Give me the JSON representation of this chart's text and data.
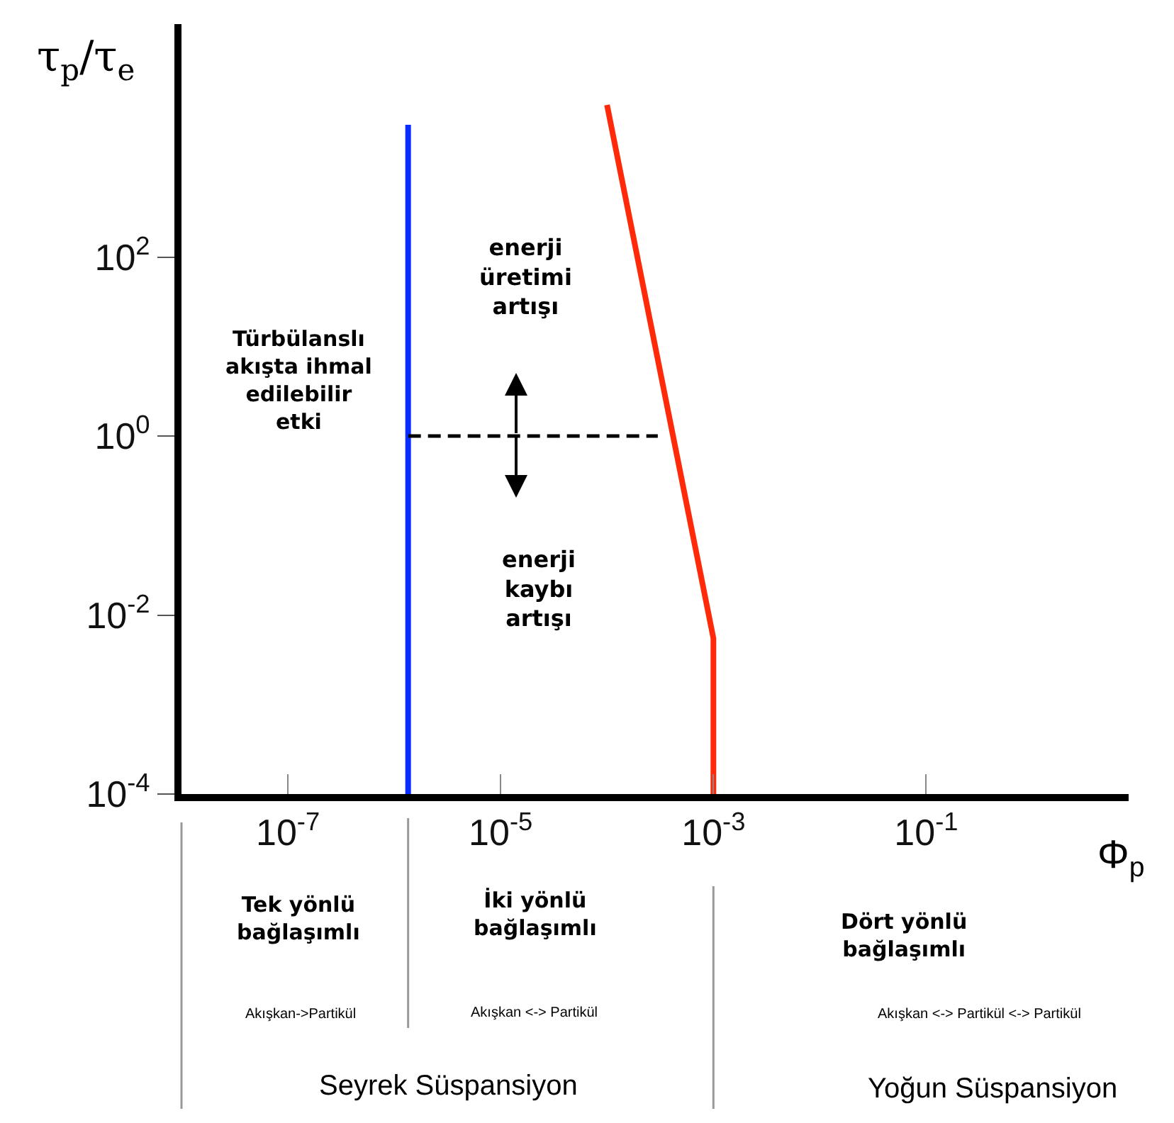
{
  "chart_data": {
    "type": "line",
    "xlabel": "Φ$_{p}$",
    "ylabel": "τ$_{p}$/τ$_{e}$",
    "log": "xy",
    "marker": "none",
    "xlim": [
      1e-08,
      8
    ],
    "ylim": [
      0.0001,
      40000
    ],
    "xticks": [
      {
        "value": 1e-07,
        "label": "10$^{-7}$"
      },
      {
        "value": 1e-05,
        "label": "10$^{-5}$"
      },
      {
        "value": 0.001,
        "label": "10$^{-3}$"
      },
      {
        "value": 0.1,
        "label": "10$^{-1}$"
      }
    ],
    "yticks": [
      {
        "value": 0.0001,
        "label": "10$^{-4}$"
      },
      {
        "value": 0.01,
        "label": "10$^{-2}$"
      },
      {
        "value": 1,
        "label": "10$^{0}$"
      },
      {
        "value": 100,
        "label": "10$^{2}$"
      }
    ],
    "series": [
      {
        "color": "#0a2cff",
        "x": [
          1.35e-06,
          1.35e-06
        ],
        "values": [
          0.0001,
          3000
        ],
        "line_style": "solid"
      },
      {
        "color": "#ff2a0a",
        "x": [
          0.0001,
          0.001,
          0.001
        ],
        "values": [
          5000,
          0.0055,
          0.0001
        ],
        "line_style": "solid"
      },
      {
        "color": "#000000",
        "x": [
          1.35e-06,
          0.0003
        ],
        "values": [
          1,
          1
        ],
        "line_style": "dashed"
      }
    ],
    "annotations": [
      "Türbülanslı\nakışta ihmal\nedilebilir\netki",
      "enerji\nüretimi\nartışı",
      "enerji\nkaybı\nartışı",
      "Tek yönlü\nbağlaşımlı",
      "Akışkan->Partikül",
      "İki yönlü\nbağlaşımlı",
      "Akışkan <-> Partikül",
      "Dört yönlü\nbağlaşımlı",
      "Akışkan <-> Partikül <-> Partikül",
      "Seyrek Süspansiyon",
      "Yoğun Süspansiyon"
    ]
  }
}
